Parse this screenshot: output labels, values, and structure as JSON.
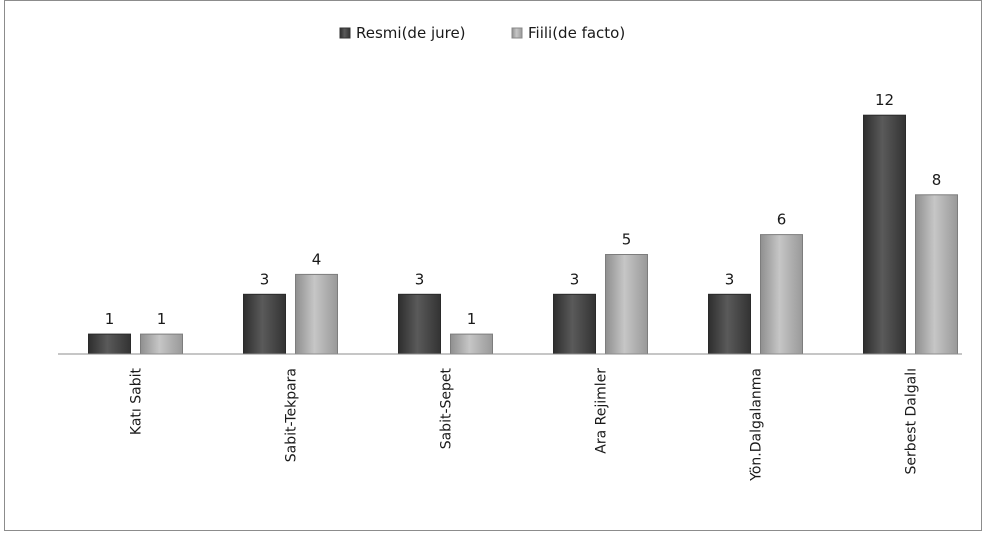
{
  "chart_data": {
    "type": "bar",
    "title": "",
    "xlabel": "",
    "ylabel": "",
    "ylim": [
      0,
      12
    ],
    "legend_position": "top",
    "grid": false,
    "categories": [
      "Katı Sabit",
      "Sabit-Tekpara",
      "Sabit-Sepet",
      "Ara Rejimler",
      "Yön.Dalgalanma",
      "Serbest Dalgalı"
    ],
    "series": [
      {
        "name": "Resmi(de jure)",
        "values": [
          1,
          3,
          3,
          3,
          3,
          12
        ],
        "color": "#4d4d4d"
      },
      {
        "name": "Fiili(de facto)",
        "values": [
          1,
          4,
          1,
          5,
          6,
          8
        ],
        "color": "#b3b3b3"
      }
    ]
  }
}
